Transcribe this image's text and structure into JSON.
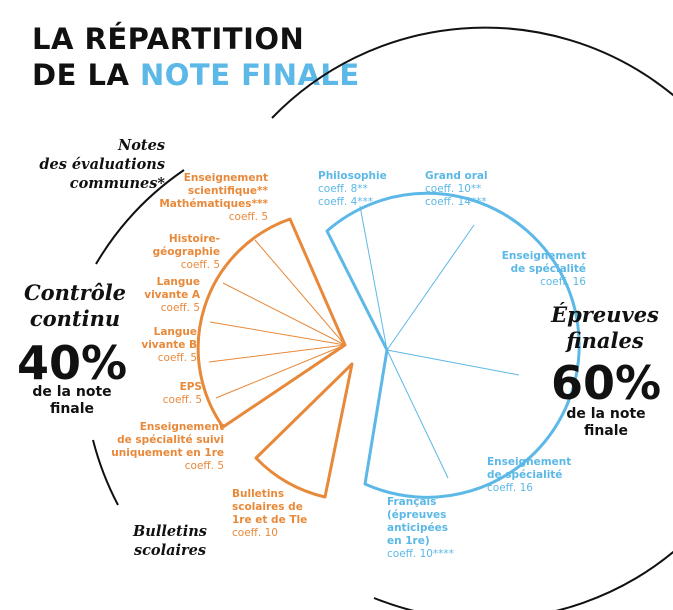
{
  "title": {
    "line1": "LA RÉPARTITION",
    "line2_prefix": "DE LA ",
    "line2_highlight": "NOTE FINALE"
  },
  "colors": {
    "orange": "#e8893a",
    "blue": "#5cb8e6",
    "dark": "#111111"
  },
  "left": {
    "notes_caption": [
      "Notes",
      "des évaluations",
      "communes*"
    ],
    "heading": [
      "Contrôle",
      "continu"
    ],
    "percent": "40%",
    "percent_sub": [
      "de la note",
      "finale"
    ],
    "bulletins_caption": [
      "Bulletins",
      "scolaires"
    ]
  },
  "right": {
    "heading": [
      "Épreuves",
      "finales"
    ],
    "percent": "60%",
    "percent_sub": [
      "de la note",
      "finale"
    ]
  },
  "orange_items": [
    {
      "name": [
        "Enseignement",
        "scientifique**",
        "Mathématiques***"
      ],
      "coeff": "coeff. 5"
    },
    {
      "name": [
        "Histoire-",
        "géographie"
      ],
      "coeff": "coeff. 5"
    },
    {
      "name": [
        "Langue",
        "vivante A"
      ],
      "coeff": "coeff. 5"
    },
    {
      "name": [
        "Langue",
        "vivante B"
      ],
      "coeff": "coeff. 5"
    },
    {
      "name": [
        "EPS"
      ],
      "coeff": "coeff. 5"
    },
    {
      "name": [
        "Enseignement",
        "de spécialité suivi",
        "uniquement en 1re"
      ],
      "coeff": "coeff. 5"
    },
    {
      "name": [
        "Bulletins",
        "scolaires de",
        "1re et de Tle"
      ],
      "coeff": "coeff. 10"
    }
  ],
  "blue_items": [
    {
      "name": [
        "Philosophie"
      ],
      "coeffs": [
        "coeff. 8**",
        "coeff. 4***"
      ]
    },
    {
      "name": [
        "Grand oral"
      ],
      "coeffs": [
        "coeff. 10**",
        "coeff. 14***"
      ]
    },
    {
      "name": [
        "Enseignement",
        "de spécialité"
      ],
      "coeffs": [
        "coeff. 16"
      ]
    },
    {
      "name": [
        "Enseignement",
        "de spécialité"
      ],
      "coeffs": [
        "coeff. 16"
      ]
    },
    {
      "name": [
        "Français",
        "(épreuves",
        "anticipées",
        "en 1re)"
      ],
      "coeffs": [
        "coeff. 10****"
      ]
    }
  ]
}
